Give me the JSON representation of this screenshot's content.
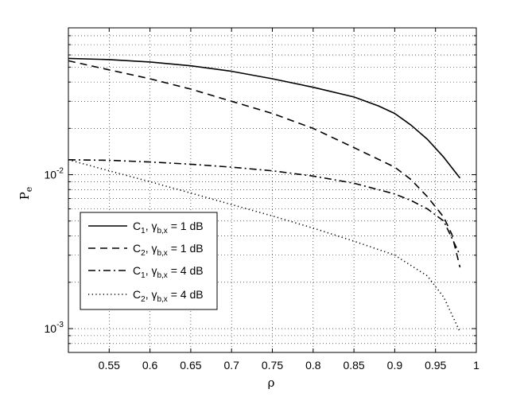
{
  "chart_data": {
    "type": "line",
    "xlabel": "ρ",
    "ylabel": "P",
    "ylabel_sub": "e",
    "xlim": [
      0.5,
      1.0
    ],
    "ylim": [
      0.0007,
      0.09
    ],
    "yscale": "log",
    "grid": true,
    "legend_position": "bottom-left",
    "x_ticks": [
      {
        "value": 0.55,
        "label": "0.55"
      },
      {
        "value": 0.6,
        "label": "0.6"
      },
      {
        "value": 0.65,
        "label": "0.65"
      },
      {
        "value": 0.7,
        "label": "0.7"
      },
      {
        "value": 0.75,
        "label": "0.75"
      },
      {
        "value": 0.8,
        "label": "0.8"
      },
      {
        "value": 0.85,
        "label": "0.85"
      },
      {
        "value": 0.9,
        "label": "0.9"
      },
      {
        "value": 0.95,
        "label": "0.95"
      },
      {
        "value": 1.0,
        "label": "1"
      }
    ],
    "y_ticks": [
      {
        "value": 0.01,
        "base": "10",
        "exp": "-2"
      },
      {
        "value": 0.001,
        "base": "10",
        "exp": "-3"
      }
    ],
    "series": [
      {
        "label": {
          "main": "C",
          "sub1": "1",
          "sep": ", ",
          "sym": "γ",
          "sub2": "b,x",
          "rest": " = 1 dB"
        },
        "style": "solid",
        "x": [
          0.5,
          0.55,
          0.6,
          0.65,
          0.7,
          0.75,
          0.8,
          0.85,
          0.88,
          0.9,
          0.92,
          0.94,
          0.96,
          0.98
        ],
        "y": [
          0.057,
          0.056,
          0.054,
          0.051,
          0.047,
          0.042,
          0.037,
          0.032,
          0.028,
          0.025,
          0.021,
          0.017,
          0.013,
          0.0095
        ]
      },
      {
        "label": {
          "main": "C",
          "sub1": "2",
          "sep": ", ",
          "sym": "γ",
          "sub2": "b,x",
          "rest": " = 1 dB"
        },
        "style": "dashed",
        "x": [
          0.5,
          0.55,
          0.6,
          0.65,
          0.7,
          0.75,
          0.8,
          0.85,
          0.9,
          0.92,
          0.94,
          0.96,
          0.97,
          0.98
        ],
        "y": [
          0.055,
          0.048,
          0.042,
          0.036,
          0.03,
          0.025,
          0.02,
          0.015,
          0.0112,
          0.0093,
          0.0072,
          0.0053,
          0.0041,
          0.0025
        ]
      },
      {
        "label": {
          "main": "C",
          "sub1": "1",
          "sep": ", ",
          "sym": "γ",
          "sub2": "b,x",
          "rest": " = 4 dB"
        },
        "style": "dashdot",
        "x": [
          0.5,
          0.55,
          0.6,
          0.65,
          0.7,
          0.75,
          0.8,
          0.85,
          0.9,
          0.92,
          0.94,
          0.96,
          0.98
        ],
        "y": [
          0.0125,
          0.0124,
          0.0121,
          0.0117,
          0.0112,
          0.0106,
          0.0098,
          0.0088,
          0.0075,
          0.0068,
          0.006,
          0.005,
          0.003
        ]
      },
      {
        "label": {
          "main": "C",
          "sub1": "2",
          "sep": ", ",
          "sym": "γ",
          "sub2": "b,x",
          "rest": " = 4 dB"
        },
        "style": "dotted",
        "x": [
          0.5,
          0.55,
          0.6,
          0.65,
          0.7,
          0.75,
          0.8,
          0.85,
          0.9,
          0.94,
          0.96,
          0.98
        ],
        "y": [
          0.0125,
          0.0106,
          0.009,
          0.0076,
          0.0064,
          0.0054,
          0.0045,
          0.0037,
          0.003,
          0.0022,
          0.0016,
          0.00095
        ]
      }
    ]
  }
}
